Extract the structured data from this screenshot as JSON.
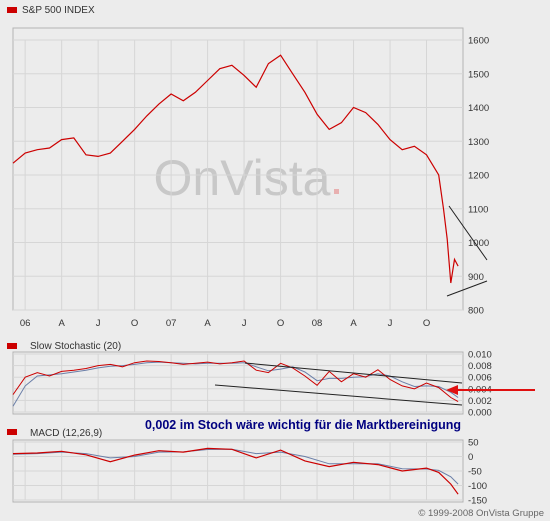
{
  "header": {
    "title": "S&P 500 INDEX"
  },
  "watermark": "OnVista",
  "colors": {
    "series": "#cc0000",
    "signal": "#6b7fa8",
    "legend_square": "#cc0000",
    "grid": "#d6d6d6"
  },
  "annotation": {
    "text": "0,002 im Stoch wäre wichtig für die Marktbereinigung",
    "color": "#000080"
  },
  "copyright": "© 1999-2008 OnVista Gruppe",
  "chart_data": [
    {
      "id": "price",
      "type": "line",
      "title": "S&P 500 INDEX",
      "ylim": [
        800,
        1600
      ],
      "yticks": [
        "1600",
        "1500",
        "1400",
        "1300",
        "1200",
        "1100",
        "1000",
        "900",
        "800"
      ],
      "xticks": [
        "06",
        "A",
        "J",
        "O",
        "07",
        "A",
        "J",
        "O",
        "08",
        "A",
        "J",
        "O"
      ],
      "grid": true,
      "x_months": [
        0,
        1,
        2,
        3,
        4,
        5,
        6,
        7,
        8,
        9,
        10,
        11,
        12,
        13,
        14,
        15,
        16,
        17,
        18,
        19,
        20,
        21,
        22,
        23,
        24,
        25,
        26,
        27,
        28,
        29,
        30,
        31,
        32,
        33,
        34,
        35,
        35.4,
        35.7,
        36,
        36.3,
        36.6
      ],
      "values": [
        1235,
        1265,
        1275,
        1280,
        1305,
        1310,
        1260,
        1255,
        1265,
        1300,
        1335,
        1375,
        1410,
        1440,
        1420,
        1445,
        1480,
        1515,
        1525,
        1495,
        1460,
        1530,
        1555,
        1500,
        1445,
        1380,
        1335,
        1355,
        1400,
        1385,
        1350,
        1305,
        1275,
        1285,
        1260,
        1200,
        1100,
        1010,
        880,
        950,
        930
      ]
    },
    {
      "id": "stochastic",
      "type": "line",
      "title": "Slow Stochastic (20)",
      "ylim": [
        0,
        0.01
      ],
      "yticks": [
        "0.010",
        "0.008",
        "0.006",
        "0.004",
        "0.002",
        "0.000"
      ],
      "grid": true,
      "series": [
        {
          "x_months": [
            0,
            1,
            2,
            3,
            4,
            5,
            6,
            7,
            8,
            9,
            10,
            11,
            12,
            13,
            14,
            15,
            16,
            17,
            18,
            19,
            20,
            21,
            22,
            23,
            24,
            25,
            26,
            27,
            28,
            29,
            30,
            31,
            32,
            33,
            34,
            35,
            36,
            36.6
          ],
          "values": [
            0.003,
            0.006,
            0.0068,
            0.0062,
            0.007,
            0.0072,
            0.0075,
            0.008,
            0.0082,
            0.0078,
            0.0085,
            0.0088,
            0.0087,
            0.0085,
            0.0082,
            0.0084,
            0.0086,
            0.0083,
            0.0085,
            0.0088,
            0.0072,
            0.0068,
            0.0084,
            0.0076,
            0.0062,
            0.0046,
            0.007,
            0.0052,
            0.0066,
            0.006,
            0.0073,
            0.0056,
            0.0045,
            0.004,
            0.005,
            0.0042,
            0.0025,
            0.0018
          ]
        },
        {
          "x_months": [
            0,
            1,
            2,
            3,
            4,
            5,
            6,
            7,
            8,
            9,
            10,
            11,
            12,
            13,
            14,
            15,
            16,
            17,
            18,
            19,
            20,
            21,
            22,
            23,
            24,
            25,
            26,
            27,
            28,
            29,
            30,
            31,
            32,
            33,
            34,
            35,
            36,
            36.6
          ],
          "values": [
            0.001,
            0.0045,
            0.0062,
            0.0064,
            0.0066,
            0.0069,
            0.0072,
            0.0076,
            0.0079,
            0.008,
            0.0082,
            0.0085,
            0.0086,
            0.0085,
            0.0084,
            0.0083,
            0.0084,
            0.0084,
            0.0084,
            0.0085,
            0.0078,
            0.0071,
            0.0074,
            0.0078,
            0.0069,
            0.0054,
            0.0058,
            0.0058,
            0.006,
            0.0061,
            0.0066,
            0.0062,
            0.0052,
            0.0044,
            0.0045,
            0.0044,
            0.0034,
            0.0025
          ]
        }
      ]
    },
    {
      "id": "macd",
      "type": "line",
      "title": "MACD (12,26,9)",
      "ylim": [
        -150,
        50
      ],
      "yticks": [
        "50",
        "0",
        "-50",
        "-100",
        "-150"
      ],
      "grid": true,
      "series": [
        {
          "x_months": [
            0,
            2,
            4,
            6,
            8,
            10,
            12,
            14,
            16,
            18,
            20,
            22,
            24,
            26,
            28,
            30,
            32,
            34,
            35,
            36,
            36.6
          ],
          "values": [
            10,
            12,
            18,
            6,
            -18,
            5,
            20,
            15,
            28,
            25,
            -5,
            22,
            -15,
            -35,
            -20,
            -28,
            -50,
            -40,
            -55,
            -95,
            -130
          ]
        },
        {
          "x_months": [
            0,
            2,
            4,
            6,
            8,
            10,
            12,
            14,
            16,
            18,
            20,
            22,
            24,
            26,
            28,
            30,
            32,
            34,
            35,
            36,
            36.6
          ],
          "values": [
            8,
            10,
            15,
            10,
            -5,
            0,
            15,
            16,
            24,
            25,
            10,
            15,
            0,
            -25,
            -25,
            -25,
            -42,
            -43,
            -48,
            -70,
            -95
          ]
        }
      ]
    }
  ]
}
